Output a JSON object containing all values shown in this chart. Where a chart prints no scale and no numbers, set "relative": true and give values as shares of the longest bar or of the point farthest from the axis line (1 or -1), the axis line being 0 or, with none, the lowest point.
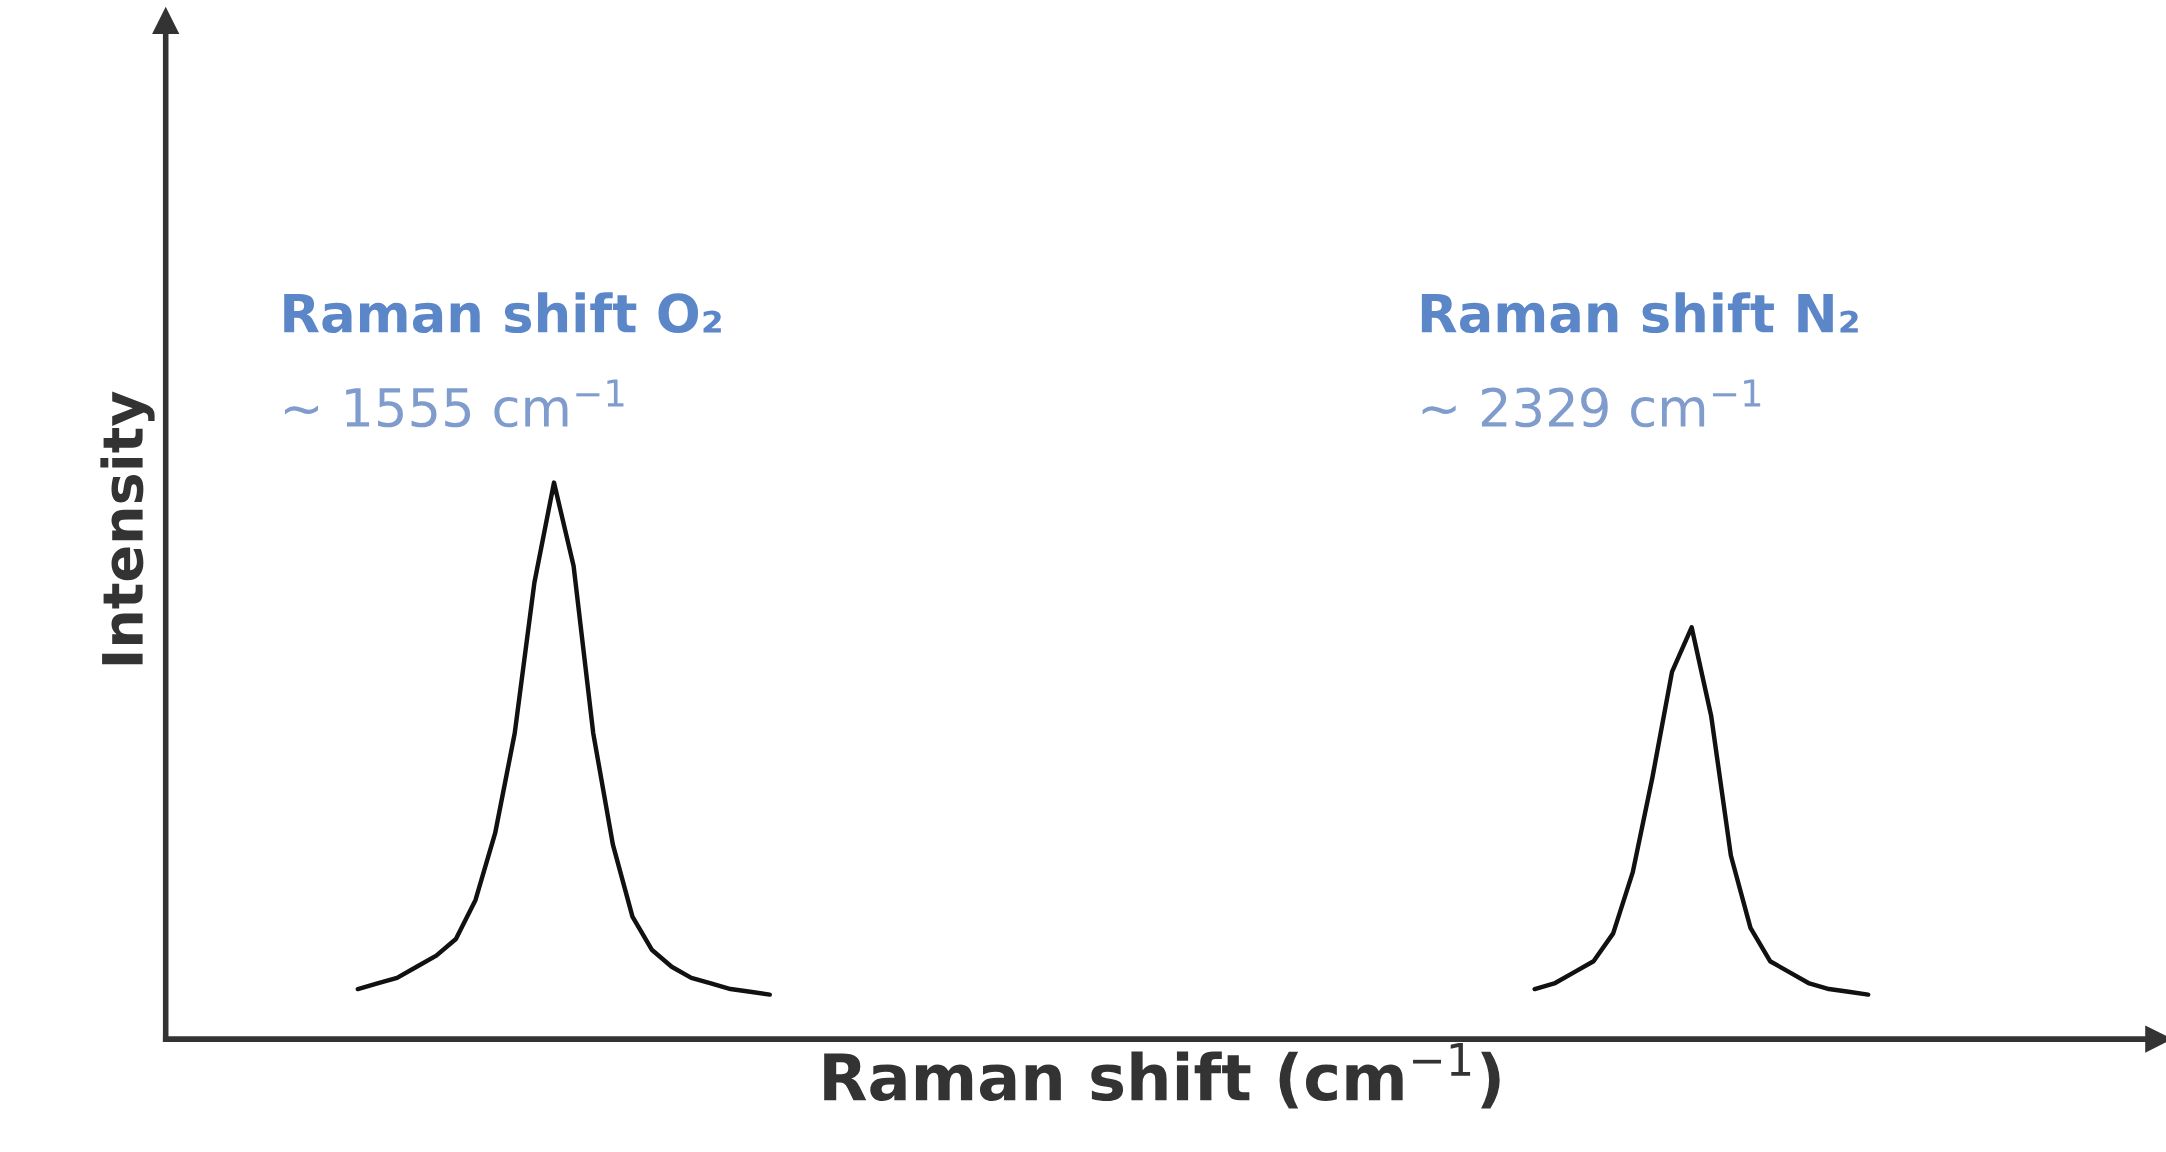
{
  "chart_data": {
    "type": "line",
    "relative": true,
    "xlabel": "Raman shift (cm$^{−1}$)",
    "ylabel": "Intensity",
    "categories": [
      null,
      null,
      null,
      null,
      null,
      null,
      null,
      null,
      null,
      null,
      null,
      null,
      null,
      null,
      null,
      null,
      null,
      null,
      null,
      null,
      null,
      null,
      null,
      null,
      null,
      null,
      null,
      null,
      null,
      null,
      null,
      null,
      null,
      null,
      null,
      null,
      null,
      null,
      null,
      null,
      null,
      null,
      null,
      null,
      null,
      null,
      null,
      null,
      null,
      null,
      null,
      null,
      null,
      null,
      null,
      null,
      null,
      null,
      null,
      null,
      null,
      null,
      null,
      null,
      null,
      null,
      null,
      null,
      null,
      null,
      null,
      null,
      null,
      null,
      null,
      null,
      null,
      null,
      null
    ],
    "series": [
      {
        "color": "#111111",
        "values": [
          0.09,
          0.1,
          0.11,
          0.13,
          0.15,
          0.18,
          0.25,
          0.37,
          0.55,
          0.82,
          1.0,
          0.85,
          0.55,
          0.35,
          0.22,
          0.16,
          0.13,
          0.11,
          0.1,
          0.09,
          0.085,
          0.08,
          null,
          null,
          null,
          null,
          null,
          null,
          null,
          null,
          null,
          null,
          null,
          null,
          null,
          null,
          null,
          null,
          null,
          null,
          null,
          null,
          null,
          null,
          null,
          null,
          null,
          null,
          null,
          null,
          null,
          null,
          null,
          null,
          null,
          null,
          null,
          null,
          null,
          null,
          null,
          null,
          null,
          null,
          null,
          null,
          null,
          null,
          null,
          null,
          null,
          null,
          null,
          null,
          null,
          null,
          null,
          null,
          null
        ]
      },
      {
        "color": "#111111",
        "values": [
          null,
          null,
          null,
          null,
          null,
          null,
          null,
          null,
          null,
          null,
          null,
          null,
          null,
          null,
          null,
          null,
          null,
          null,
          null,
          null,
          null,
          null,
          null,
          null,
          null,
          null,
          null,
          null,
          null,
          null,
          null,
          null,
          null,
          null,
          null,
          null,
          null,
          null,
          null,
          null,
          null,
          null,
          null,
          null,
          null,
          null,
          null,
          null,
          null,
          null,
          null,
          null,
          null,
          null,
          null,
          null,
          null,
          null,
          null,
          null,
          0.09,
          0.1,
          0.12,
          0.14,
          0.19,
          0.3,
          0.47,
          0.66,
          0.74,
          0.58,
          0.33,
          0.2,
          0.14,
          0.12,
          0.1,
          0.09,
          0.085,
          0.08,
          null
        ]
      }
    ],
    "annotations": [
      "Raman shift O₂",
      "~ 1555 cm$^{−1}$",
      "Raman shift N₂",
      "~ 2329 cm$^{−1}$"
    ],
    "marker": "none",
    "line_style": "solid"
  }
}
